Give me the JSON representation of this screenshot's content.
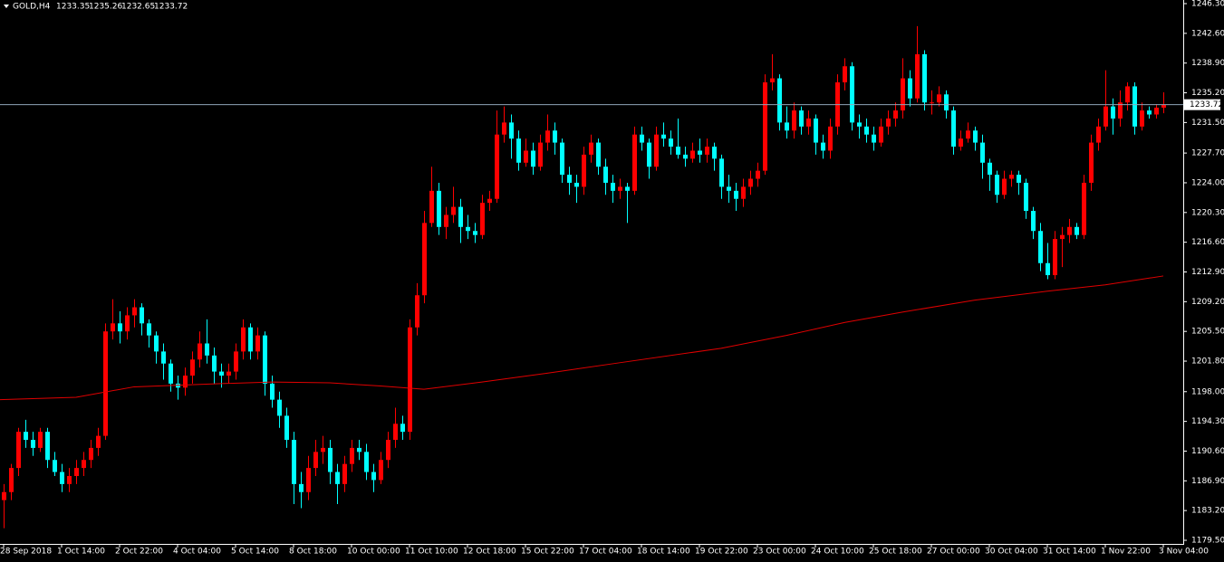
{
  "chart_data": {
    "type": "candlestick",
    "symbol": "GOLD,H4",
    "header_ohlc": [
      1233.35,
      1235.26,
      1232.65,
      1233.72
    ],
    "current_price": {
      "value": 1233.72,
      "label": "1233.72"
    },
    "up_color": "#ff0000",
    "down_color": "#00ffff",
    "ma_color": "#e00000",
    "price_line_color": "#8fa4b8",
    "ylim": [
      1179.5,
      1246.3
    ],
    "yticks": [
      {
        "value": 1179.5,
        "label": "1179.50"
      },
      {
        "value": 1183.2,
        "label": "1183.20"
      },
      {
        "value": 1186.9,
        "label": "1186.90"
      },
      {
        "value": 1190.6,
        "label": "1190.60"
      },
      {
        "value": 1194.3,
        "label": "1194.30"
      },
      {
        "value": 1198.0,
        "label": "1198.00"
      },
      {
        "value": 1201.8,
        "label": "1201.80"
      },
      {
        "value": 1205.5,
        "label": "1205.50"
      },
      {
        "value": 1209.2,
        "label": "1209.20"
      },
      {
        "value": 1212.9,
        "label": "1212.90"
      },
      {
        "value": 1216.6,
        "label": "1216.60"
      },
      {
        "value": 1220.3,
        "label": "1220.30"
      },
      {
        "value": 1224.0,
        "label": "1224.00"
      },
      {
        "value": 1227.7,
        "label": "1227.70"
      },
      {
        "value": 1231.5,
        "label": "1231.50"
      },
      {
        "value": 1235.2,
        "label": "1235.20"
      },
      {
        "value": 1238.9,
        "label": "1238.90"
      },
      {
        "value": 1242.6,
        "label": "1242.60"
      },
      {
        "value": 1246.3,
        "label": "1246.30"
      }
    ],
    "categories": [
      "28 Sep 2018",
      null,
      null,
      null,
      null,
      null,
      null,
      null,
      "1 Oct 14:00",
      null,
      null,
      null,
      null,
      null,
      null,
      null,
      "2 Oct 22:00",
      null,
      null,
      null,
      null,
      null,
      null,
      null,
      "4 Oct 04:00",
      null,
      null,
      null,
      null,
      null,
      null,
      null,
      "5 Oct 14:00",
      null,
      null,
      null,
      null,
      null,
      null,
      null,
      "8 Oct 18:00",
      null,
      null,
      null,
      null,
      null,
      null,
      null,
      "10 Oct 00:00",
      null,
      null,
      null,
      null,
      null,
      null,
      null,
      "11 Oct 10:00",
      null,
      null,
      null,
      null,
      null,
      null,
      null,
      "12 Oct 18:00",
      null,
      null,
      null,
      null,
      null,
      null,
      null,
      "15 Oct 22:00",
      null,
      null,
      null,
      null,
      null,
      null,
      null,
      "17 Oct 04:00",
      null,
      null,
      null,
      null,
      null,
      null,
      null,
      "18 Oct 14:00",
      null,
      null,
      null,
      null,
      null,
      null,
      null,
      "19 Oct 22:00",
      null,
      null,
      null,
      null,
      null,
      null,
      null,
      "23 Oct 00:00",
      null,
      null,
      null,
      null,
      null,
      null,
      null,
      "24 Oct 10:00",
      null,
      null,
      null,
      null,
      null,
      null,
      null,
      "25 Oct 18:00",
      null,
      null,
      null,
      null,
      null,
      null,
      null,
      "27 Oct 00:00",
      null,
      null,
      null,
      null,
      null,
      null,
      null,
      "30 Oct 04:00",
      null,
      null,
      null,
      null,
      null,
      null,
      null,
      "31 Oct 14:00",
      null,
      null,
      null,
      null,
      null,
      null,
      null,
      "1 Nov 22:00",
      null,
      null,
      null,
      null,
      null,
      null,
      null,
      "3 Nov 04:00"
    ],
    "ohlc": [
      [
        1184.5,
        1186.5,
        1181.0,
        1185.5
      ],
      [
        1185.5,
        1189.0,
        1184.5,
        1188.5
      ],
      [
        1188.5,
        1193.5,
        1187.5,
        1193.0
      ],
      [
        1193.0,
        1194.5,
        1191.0,
        1192.0
      ],
      [
        1192.0,
        1193.0,
        1190.0,
        1191.0
      ],
      [
        1191.0,
        1193.5,
        1190.5,
        1193.0
      ],
      [
        1193.0,
        1193.5,
        1188.5,
        1189.5
      ],
      [
        1189.5,
        1190.5,
        1187.5,
        1188.0
      ],
      [
        1188.0,
        1189.0,
        1185.5,
        1186.5
      ],
      [
        1186.5,
        1188.5,
        1185.5,
        1187.5
      ],
      [
        1187.5,
        1189.5,
        1186.5,
        1188.5
      ],
      [
        1188.5,
        1190.5,
        1187.5,
        1189.5
      ],
      [
        1189.5,
        1192.0,
        1188.5,
        1191.0
      ],
      [
        1191.0,
        1193.5,
        1190.0,
        1192.5
      ],
      [
        1192.5,
        1206.5,
        1192.0,
        1205.5
      ],
      [
        1205.5,
        1209.5,
        1204.5,
        1206.5
      ],
      [
        1206.5,
        1208.0,
        1204.0,
        1205.5
      ],
      [
        1205.5,
        1208.5,
        1204.5,
        1207.5
      ],
      [
        1207.5,
        1209.5,
        1206.0,
        1208.5
      ],
      [
        1208.5,
        1209.0,
        1205.0,
        1206.5
      ],
      [
        1206.5,
        1207.0,
        1203.5,
        1205.0
      ],
      [
        1205.0,
        1205.5,
        1201.5,
        1203.0
      ],
      [
        1203.0,
        1204.0,
        1199.5,
        1201.5
      ],
      [
        1201.5,
        1202.0,
        1198.0,
        1199.0
      ],
      [
        1199.0,
        1200.0,
        1197.0,
        1198.5
      ],
      [
        1198.5,
        1201.0,
        1197.5,
        1200.0
      ],
      [
        1200.0,
        1203.0,
        1199.0,
        1202.0
      ],
      [
        1202.0,
        1205.5,
        1201.0,
        1204.0
      ],
      [
        1204.0,
        1207.0,
        1201.5,
        1202.5
      ],
      [
        1202.5,
        1203.5,
        1199.0,
        1200.5
      ],
      [
        1200.5,
        1201.5,
        1198.5,
        1200.0
      ],
      [
        1200.0,
        1201.5,
        1199.0,
        1200.5
      ],
      [
        1200.5,
        1204.0,
        1199.5,
        1203.0
      ],
      [
        1203.0,
        1207.0,
        1202.0,
        1206.0
      ],
      [
        1206.0,
        1206.5,
        1202.0,
        1203.0
      ],
      [
        1203.0,
        1206.0,
        1202.0,
        1205.0
      ],
      [
        1205.0,
        1205.5,
        1197.5,
        1199.0
      ],
      [
        1199.0,
        1200.0,
        1196.0,
        1197.0
      ],
      [
        1197.0,
        1198.0,
        1193.5,
        1195.0
      ],
      [
        1195.0,
        1196.0,
        1191.0,
        1192.0
      ],
      [
        1192.0,
        1193.0,
        1184.0,
        1186.5
      ],
      [
        1186.5,
        1188.0,
        1183.5,
        1185.5
      ],
      [
        1185.5,
        1190.0,
        1184.5,
        1188.5
      ],
      [
        1188.5,
        1192.0,
        1187.5,
        1190.5
      ],
      [
        1190.5,
        1192.5,
        1189.0,
        1191.0
      ],
      [
        1191.0,
        1192.0,
        1186.5,
        1188.0
      ],
      [
        1188.0,
        1189.0,
        1184.0,
        1186.5
      ],
      [
        1186.5,
        1190.0,
        1185.5,
        1189.0
      ],
      [
        1189.0,
        1192.0,
        1188.0,
        1191.0
      ],
      [
        1191.0,
        1192.0,
        1189.5,
        1190.5
      ],
      [
        1190.5,
        1191.5,
        1187.0,
        1188.0
      ],
      [
        1188.0,
        1189.0,
        1185.5,
        1187.0
      ],
      [
        1187.0,
        1190.5,
        1186.5,
        1189.5
      ],
      [
        1189.5,
        1193.0,
        1188.5,
        1192.0
      ],
      [
        1192.0,
        1196.0,
        1191.0,
        1194.0
      ],
      [
        1194.0,
        1195.0,
        1192.0,
        1193.0
      ],
      [
        1193.0,
        1207.0,
        1192.0,
        1206.0
      ],
      [
        1206.0,
        1211.5,
        1205.0,
        1210.0
      ],
      [
        1210.0,
        1220.5,
        1209.0,
        1219.0
      ],
      [
        1219.0,
        1226.0,
        1218.5,
        1223.0
      ],
      [
        1223.0,
        1224.0,
        1217.5,
        1218.5
      ],
      [
        1218.5,
        1221.0,
        1217.0,
        1220.0
      ],
      [
        1220.0,
        1223.5,
        1219.0,
        1221.0
      ],
      [
        1221.0,
        1222.0,
        1216.5,
        1218.5
      ],
      [
        1218.5,
        1220.0,
        1217.0,
        1218.0
      ],
      [
        1218.0,
        1219.0,
        1216.5,
        1217.5
      ],
      [
        1217.5,
        1222.5,
        1217.0,
        1221.5
      ],
      [
        1221.5,
        1223.0,
        1220.5,
        1222.0
      ],
      [
        1222.0,
        1233.0,
        1221.5,
        1230.0
      ],
      [
        1230.0,
        1233.5,
        1229.0,
        1231.5
      ],
      [
        1231.5,
        1232.5,
        1227.0,
        1229.5
      ],
      [
        1229.5,
        1230.5,
        1225.5,
        1226.5
      ],
      [
        1226.5,
        1229.5,
        1226.0,
        1228.0
      ],
      [
        1228.0,
        1229.0,
        1225.0,
        1226.0
      ],
      [
        1226.0,
        1230.0,
        1225.5,
        1229.0
      ],
      [
        1229.0,
        1232.5,
        1228.0,
        1230.5
      ],
      [
        1230.5,
        1231.5,
        1227.5,
        1229.0
      ],
      [
        1229.0,
        1229.5,
        1224.0,
        1225.0
      ],
      [
        1225.0,
        1226.0,
        1222.5,
        1224.0
      ],
      [
        1224.0,
        1225.0,
        1221.5,
        1223.5
      ],
      [
        1223.5,
        1228.5,
        1222.5,
        1227.5
      ],
      [
        1227.5,
        1230.0,
        1226.5,
        1229.0
      ],
      [
        1229.0,
        1229.5,
        1225.0,
        1226.0
      ],
      [
        1226.0,
        1227.0,
        1222.5,
        1224.0
      ],
      [
        1224.0,
        1225.0,
        1221.5,
        1223.0
      ],
      [
        1223.0,
        1224.5,
        1222.0,
        1223.5
      ],
      [
        1223.5,
        1224.0,
        1219.0,
        1223.0
      ],
      [
        1223.0,
        1231.0,
        1222.5,
        1230.0
      ],
      [
        1230.0,
        1231.0,
        1228.0,
        1229.0
      ],
      [
        1229.0,
        1229.5,
        1224.5,
        1226.0
      ],
      [
        1226.0,
        1231.0,
        1225.5,
        1230.0
      ],
      [
        1230.0,
        1231.5,
        1228.5,
        1229.5
      ],
      [
        1229.5,
        1230.5,
        1227.5,
        1228.5
      ],
      [
        1228.5,
        1232.0,
        1227.0,
        1227.5
      ],
      [
        1227.5,
        1228.5,
        1226.0,
        1227.0
      ],
      [
        1227.0,
        1229.0,
        1226.5,
        1228.0
      ],
      [
        1228.0,
        1229.5,
        1226.5,
        1227.5
      ],
      [
        1227.5,
        1229.5,
        1226.5,
        1228.5
      ],
      [
        1228.5,
        1229.0,
        1225.5,
        1227.0
      ],
      [
        1227.0,
        1227.5,
        1222.0,
        1223.5
      ],
      [
        1223.5,
        1225.0,
        1221.5,
        1223.0
      ],
      [
        1223.0,
        1224.0,
        1220.5,
        1222.0
      ],
      [
        1222.0,
        1224.5,
        1221.0,
        1223.5
      ],
      [
        1223.5,
        1225.5,
        1222.5,
        1224.5
      ],
      [
        1224.5,
        1226.5,
        1223.5,
        1225.5
      ],
      [
        1225.5,
        1237.5,
        1225.0,
        1236.5
      ],
      [
        1236.5,
        1240.0,
        1235.5,
        1237.0
      ],
      [
        1237.0,
        1237.5,
        1230.5,
        1231.5
      ],
      [
        1231.5,
        1233.5,
        1229.5,
        1230.5
      ],
      [
        1230.5,
        1234.0,
        1229.5,
        1233.0
      ],
      [
        1233.0,
        1233.5,
        1230.0,
        1231.0
      ],
      [
        1231.0,
        1233.0,
        1230.0,
        1232.0
      ],
      [
        1232.0,
        1232.5,
        1227.5,
        1229.0
      ],
      [
        1229.0,
        1230.0,
        1227.0,
        1228.0
      ],
      [
        1228.0,
        1232.0,
        1227.0,
        1231.0
      ],
      [
        1231.0,
        1237.5,
        1230.0,
        1236.5
      ],
      [
        1236.5,
        1239.5,
        1235.5,
        1238.5
      ],
      [
        1238.5,
        1239.0,
        1230.5,
        1231.5
      ],
      [
        1231.5,
        1232.5,
        1229.5,
        1231.0
      ],
      [
        1231.0,
        1232.0,
        1229.0,
        1230.0
      ],
      [
        1230.0,
        1231.0,
        1228.0,
        1229.0
      ],
      [
        1229.0,
        1232.0,
        1228.5,
        1231.0
      ],
      [
        1231.0,
        1233.0,
        1230.0,
        1232.0
      ],
      [
        1232.0,
        1234.0,
        1231.0,
        1233.0
      ],
      [
        1233.0,
        1239.5,
        1232.0,
        1237.0
      ],
      [
        1237.0,
        1238.0,
        1233.5,
        1234.5
      ],
      [
        1234.5,
        1243.5,
        1234.0,
        1240.0
      ],
      [
        1240.0,
        1240.5,
        1233.0,
        1234.0
      ],
      [
        1234.0,
        1235.5,
        1232.5,
        1234.0
      ],
      [
        1234.0,
        1236.0,
        1233.5,
        1235.0
      ],
      [
        1235.0,
        1235.5,
        1232.0,
        1233.0
      ],
      [
        1233.0,
        1233.5,
        1227.5,
        1228.5
      ],
      [
        1228.5,
        1230.5,
        1228.0,
        1229.5
      ],
      [
        1229.5,
        1231.5,
        1229.0,
        1230.5
      ],
      [
        1230.5,
        1231.0,
        1228.0,
        1229.0
      ],
      [
        1229.0,
        1230.0,
        1224.5,
        1226.5
      ],
      [
        1226.5,
        1227.0,
        1223.0,
        1225.0
      ],
      [
        1225.0,
        1225.5,
        1221.5,
        1222.5
      ],
      [
        1222.5,
        1225.5,
        1222.0,
        1224.5
      ],
      [
        1224.5,
        1225.5,
        1223.5,
        1225.0
      ],
      [
        1225.0,
        1225.5,
        1222.5,
        1224.0
      ],
      [
        1224.0,
        1224.5,
        1219.5,
        1220.5
      ],
      [
        1220.5,
        1221.0,
        1217.0,
        1218.0
      ],
      [
        1218.0,
        1219.0,
        1213.0,
        1214.0
      ],
      [
        1214.0,
        1216.5,
        1212.0,
        1212.5
      ],
      [
        1212.5,
        1218.0,
        1212.0,
        1217.0
      ],
      [
        1217.0,
        1218.5,
        1213.5,
        1217.5
      ],
      [
        1217.5,
        1219.5,
        1216.5,
        1218.5
      ],
      [
        1218.5,
        1219.0,
        1217.0,
        1217.5
      ],
      [
        1217.5,
        1225.0,
        1217.0,
        1224.0
      ],
      [
        1224.0,
        1230.0,
        1223.0,
        1229.0
      ],
      [
        1229.0,
        1232.0,
        1228.0,
        1231.0
      ],
      [
        1231.0,
        1238.0,
        1230.5,
        1233.5
      ],
      [
        1233.5,
        1234.5,
        1230.0,
        1232.0
      ],
      [
        1232.0,
        1235.5,
        1231.0,
        1234.0
      ],
      [
        1234.0,
        1236.5,
        1233.0,
        1236.0
      ],
      [
        1236.0,
        1236.5,
        1230.0,
        1231.0
      ],
      [
        1231.0,
        1234.0,
        1230.5,
        1233.0
      ],
      [
        1233.0,
        1233.5,
        1232.0,
        1232.5
      ],
      [
        1232.5,
        1233.8,
        1232.0,
        1233.35
      ],
      [
        1233.35,
        1235.26,
        1232.65,
        1233.72
      ]
    ],
    "ma": {
      "x": [
        0,
        10,
        18,
        30,
        37,
        45,
        52,
        58,
        66,
        75,
        85,
        99,
        108,
        116,
        124,
        134,
        144,
        152,
        160
      ],
      "values": [
        1197.0,
        1197.3,
        1198.6,
        1199.0,
        1199.2,
        1199.1,
        1198.7,
        1198.3,
        1199.2,
        1200.3,
        1201.6,
        1203.4,
        1205.0,
        1206.6,
        1207.9,
        1209.4,
        1210.5,
        1211.3,
        1212.4
      ]
    }
  }
}
